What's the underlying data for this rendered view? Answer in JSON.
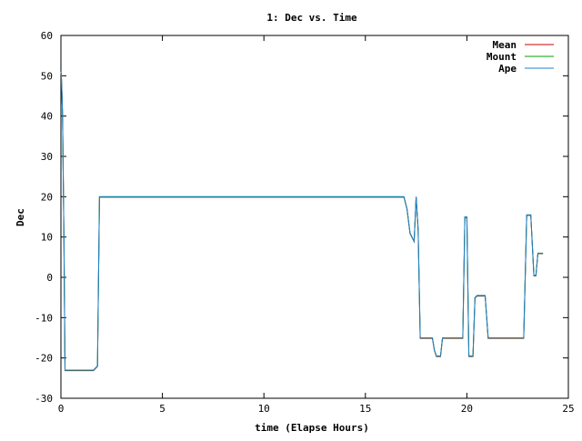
{
  "chart_data": {
    "type": "line",
    "title": "1: Dec vs. Time",
    "xlabel": "time (Elapse Hours)",
    "ylabel": "Dec",
    "xlim": [
      0,
      25
    ],
    "ylim": [
      -30,
      60
    ],
    "xticks": [
      0,
      5,
      10,
      15,
      20,
      25
    ],
    "yticks": [
      -30,
      -20,
      -10,
      0,
      10,
      20,
      30,
      40,
      50,
      60
    ],
    "grid": false,
    "legend_position": "top-right",
    "series": [
      {
        "name": "Mean",
        "color": "#cc0000",
        "x": [
          0,
          0.02,
          0.05,
          0.08,
          0.1,
          0.15,
          0.2,
          0.3,
          0.5,
          1.0,
          1.5,
          1.6,
          1.8,
          1.9,
          2.5,
          5.2,
          10,
          15,
          16.9,
          17.05,
          17.2,
          17.4,
          17.5,
          17.6,
          17.7,
          17.8,
          18.3,
          18.4,
          18.5,
          18.7,
          18.8,
          19.2,
          19.8,
          19.9,
          20.0,
          20.1,
          20.2,
          20.3,
          20.4,
          20.5,
          20.55,
          20.9,
          21.05,
          21.5,
          22.0,
          22.8,
          22.95,
          23.15,
          23.3,
          23.4,
          23.5,
          23.6,
          23.75
        ],
        "y": [
          51,
          50.5,
          46,
          40,
          32,
          10,
          -23,
          -23,
          -23,
          -23,
          -23,
          -23,
          -22,
          20,
          20,
          20,
          20,
          20,
          20,
          17,
          11,
          9,
          20,
          12,
          -15,
          -15,
          -15,
          -18,
          -19.5,
          -19.5,
          -15,
          -15,
          -15,
          15,
          15,
          -19.5,
          -19.5,
          -19.5,
          -5,
          -4.5,
          -4.5,
          -4.5,
          -15,
          -15,
          -15,
          -15,
          15.5,
          15.5,
          0.5,
          0.5,
          6,
          6,
          6
        ]
      },
      {
        "name": "Mount",
        "color": "#00a000",
        "x": [
          0,
          0.02,
          0.05,
          0.08,
          0.1,
          0.15,
          0.2,
          0.3,
          0.5,
          1.0,
          1.5,
          1.6,
          1.8,
          1.9,
          2.5,
          5.2,
          10,
          15,
          16.9,
          17.05,
          17.2,
          17.4,
          17.5,
          17.6,
          17.7,
          17.8,
          18.3,
          18.4,
          18.5,
          18.7,
          18.8,
          19.2,
          19.8,
          19.9,
          20.0,
          20.1,
          20.2,
          20.3,
          20.4,
          20.5,
          20.55,
          20.9,
          21.05,
          21.5,
          22.0,
          22.8,
          22.95,
          23.15,
          23.3,
          23.4,
          23.5,
          23.6,
          23.75
        ],
        "y": [
          51,
          50.5,
          46,
          40,
          32,
          10,
          -23,
          -23,
          -23,
          -23,
          -23,
          -23,
          -22,
          20,
          20,
          20,
          20,
          20,
          20,
          17,
          11,
          9,
          20,
          12,
          -15,
          -15,
          -15,
          -18,
          -19.5,
          -19.5,
          -15,
          -15,
          -15,
          15,
          15,
          -19.5,
          -19.5,
          -19.5,
          -5,
          -4.5,
          -4.5,
          -4.5,
          -15,
          -15,
          -15,
          -15,
          15.5,
          15.5,
          0.5,
          0.5,
          6,
          6,
          6
        ]
      },
      {
        "name": "Ape",
        "color": "#1f7fd0",
        "x": [
          0,
          0.02,
          0.05,
          0.08,
          0.1,
          0.15,
          0.2,
          0.3,
          0.5,
          1.0,
          1.5,
          1.6,
          1.8,
          1.9,
          2.5,
          5.2,
          10,
          15,
          16.9,
          17.05,
          17.2,
          17.4,
          17.5,
          17.6,
          17.7,
          17.8,
          18.3,
          18.4,
          18.5,
          18.7,
          18.8,
          19.2,
          19.8,
          19.9,
          20.0,
          20.1,
          20.2,
          20.3,
          20.4,
          20.5,
          20.55,
          20.9,
          21.05,
          21.5,
          22.0,
          22.8,
          22.95,
          23.15,
          23.3,
          23.4,
          23.5,
          23.6,
          23.75
        ],
        "y": [
          51,
          50.5,
          46,
          40,
          32,
          10,
          -23,
          -23,
          -23,
          -23,
          -23,
          -23,
          -22,
          20,
          20,
          20,
          20,
          20,
          20,
          17,
          11,
          9,
          20,
          12,
          -15,
          -15,
          -15,
          -18,
          -19.5,
          -19.5,
          -15,
          -15,
          -15,
          15,
          15,
          -19.5,
          -19.5,
          -19.5,
          -5,
          -4.5,
          -4.5,
          -4.5,
          -15,
          -15,
          -15,
          -15,
          15.5,
          15.5,
          0.5,
          0.5,
          6,
          6,
          6
        ]
      }
    ]
  }
}
